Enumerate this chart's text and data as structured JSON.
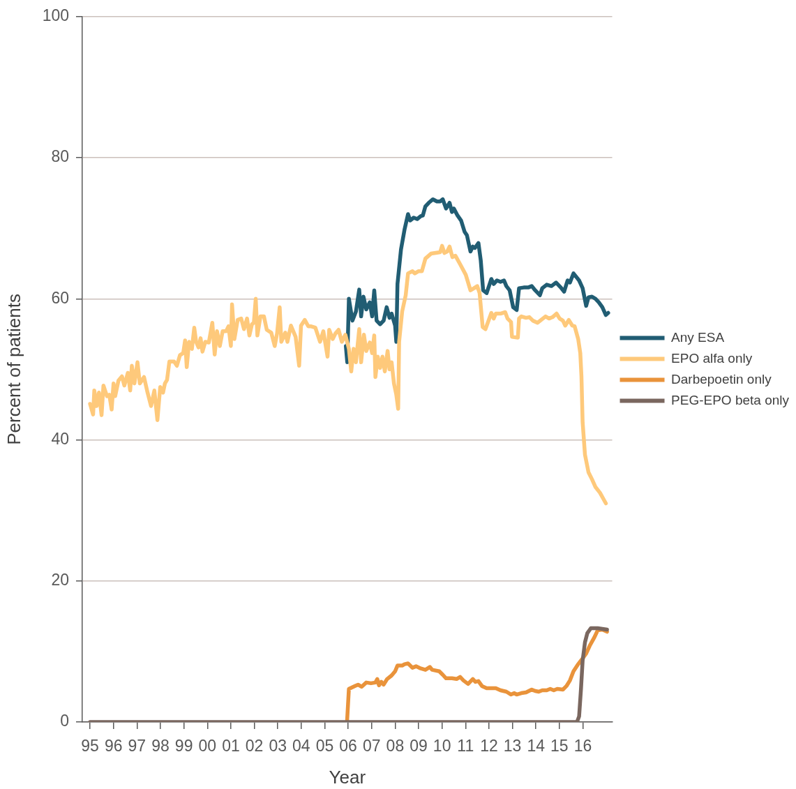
{
  "chart_data": {
    "type": "line",
    "xlabel": "Year",
    "ylabel": "Percent of patients",
    "xlim": [
      1994.67,
      2017.25
    ],
    "xticks": [
      {
        "value": 1995,
        "label": "95"
      },
      {
        "value": 1996,
        "label": "96"
      },
      {
        "value": 1997,
        "label": "97"
      },
      {
        "value": 1998,
        "label": "98"
      },
      {
        "value": 1999,
        "label": "99"
      },
      {
        "value": 2000,
        "label": "00"
      },
      {
        "value": 2001,
        "label": "01"
      },
      {
        "value": 2002,
        "label": "02"
      },
      {
        "value": 2003,
        "label": "03"
      },
      {
        "value": 2004,
        "label": "04"
      },
      {
        "value": 2005,
        "label": "05"
      },
      {
        "value": 2006,
        "label": "06"
      },
      {
        "value": 2007,
        "label": "07"
      },
      {
        "value": 2008,
        "label": "08"
      },
      {
        "value": 2009,
        "label": "09"
      },
      {
        "value": 2010,
        "label": "10"
      },
      {
        "value": 2011,
        "label": "11"
      },
      {
        "value": 2012,
        "label": "12"
      },
      {
        "value": 2013,
        "label": "13"
      },
      {
        "value": 2014,
        "label": "14"
      },
      {
        "value": 2015,
        "label": "15"
      },
      {
        "value": 2016,
        "label": "16"
      }
    ],
    "ylim": [
      0,
      100
    ],
    "yticks": [
      0,
      20,
      40,
      60,
      80,
      100
    ],
    "grid": "y",
    "legend": "right",
    "series": [
      {
        "name": "Any ESA",
        "color": "#215d73",
        "x": [
          2005.9,
          2005.96,
          2006.03,
          2006.18,
          2006.33,
          2006.47,
          2006.55,
          2006.65,
          2006.77,
          2006.92,
          2007.02,
          2007.11,
          2007.21,
          2007.36,
          2007.51,
          2007.64,
          2007.76,
          2007.85,
          2008.0,
          2008.05,
          2008.1,
          2008.25,
          2008.4,
          2008.55,
          2008.64,
          2008.79,
          2008.94,
          2009.09,
          2009.18,
          2009.29,
          2009.43,
          2009.61,
          2009.78,
          2009.92,
          2010.03,
          2010.17,
          2010.32,
          2010.42,
          2010.5,
          2010.66,
          2010.81,
          2010.96,
          2011.06,
          2011.21,
          2011.31,
          2011.4,
          2011.55,
          2011.65,
          2011.75,
          2011.9,
          2012.1,
          2012.2,
          2012.34,
          2012.49,
          2012.64,
          2012.74,
          2012.88,
          2013.03,
          2013.18,
          2013.28,
          2013.48,
          2013.67,
          2013.82,
          2013.97,
          2014.17,
          2014.27,
          2014.46,
          2014.66,
          2014.86,
          2015.06,
          2015.2,
          2015.35,
          2015.45,
          2015.6,
          2015.84,
          2015.99,
          2016.14,
          2016.24,
          2016.39,
          2016.54,
          2016.68,
          2016.83,
          2016.98,
          2017.08
        ],
        "values": [
          53.3,
          51.0,
          60.0,
          56.9,
          58.2,
          61.3,
          57.5,
          60.3,
          58.5,
          59.5,
          57.5,
          61.2,
          56.9,
          56.4,
          56.9,
          58.8,
          57.3,
          57.9,
          56.2,
          53.9,
          62.1,
          67.0,
          69.8,
          72.0,
          71.1,
          71.5,
          71.3,
          71.7,
          71.8,
          73.1,
          73.6,
          74.1,
          73.8,
          73.8,
          74.1,
          72.8,
          73.6,
          72.3,
          72.8,
          71.8,
          71.1,
          69.5,
          69.0,
          66.7,
          67.4,
          67.2,
          67.9,
          65.4,
          61.2,
          60.8,
          62.8,
          62.1,
          62.6,
          62.4,
          62.6,
          61.8,
          61.2,
          58.8,
          58.4,
          61.5,
          61.6,
          61.6,
          61.8,
          61.2,
          60.5,
          61.5,
          62.0,
          61.8,
          62.3,
          61.6,
          61.0,
          62.6,
          62.3,
          63.6,
          62.6,
          61.5,
          59.0,
          60.2,
          60.3,
          60.0,
          59.5,
          58.8,
          57.7,
          58.0
        ]
      },
      {
        "name": "EPO alfa only",
        "color": "#fec97b",
        "x": [
          1995.0,
          1995.13,
          1995.18,
          1995.28,
          1995.38,
          1995.49,
          1995.57,
          1995.72,
          1995.82,
          1995.92,
          1996.0,
          1996.07,
          1996.21,
          1996.36,
          1996.46,
          1996.61,
          1996.71,
          1996.78,
          1996.89,
          1997.02,
          1997.12,
          1997.3,
          1997.45,
          1997.6,
          1997.74,
          1997.87,
          1997.99,
          1998.11,
          1998.19,
          1998.28,
          1998.38,
          1998.58,
          1998.7,
          1998.83,
          1998.97,
          1999.05,
          1999.12,
          1999.22,
          1999.34,
          1999.44,
          1999.52,
          1999.62,
          1999.71,
          1999.79,
          1999.91,
          2000.06,
          2000.21,
          2000.31,
          2000.41,
          2000.53,
          2000.65,
          2000.8,
          2000.9,
          2001.0,
          2001.05,
          2001.15,
          2001.29,
          2001.44,
          2001.56,
          2001.69,
          2001.79,
          2001.9,
          2001.98,
          2002.06,
          2002.13,
          2002.26,
          2002.41,
          2002.53,
          2002.72,
          2002.87,
          2002.97,
          2003.08,
          2003.15,
          2003.32,
          2003.41,
          2003.56,
          2003.76,
          2003.91,
          2003.99,
          2004.15,
          2004.3,
          2004.4,
          2004.6,
          2004.8,
          2004.94,
          2005.12,
          2005.19,
          2005.34,
          2005.46,
          2005.59,
          2005.73,
          2005.88,
          2006.03,
          2006.13,
          2006.23,
          2006.33,
          2006.47,
          2006.55,
          2006.67,
          2006.77,
          2006.92,
          2007.02,
          2007.11,
          2007.16,
          2007.26,
          2007.36,
          2007.46,
          2007.56,
          2007.68,
          2007.76,
          2007.85,
          2007.95,
          2008.05,
          2008.13,
          2008.17,
          2008.3,
          2008.45,
          2008.55,
          2008.74,
          2008.84,
          2008.99,
          2009.14,
          2009.29,
          2009.53,
          2009.73,
          2009.92,
          2010.0,
          2010.1,
          2010.22,
          2010.32,
          2010.44,
          2010.57,
          2010.77,
          2011.01,
          2011.21,
          2011.36,
          2011.5,
          2011.6,
          2011.73,
          2011.85,
          2012.1,
          2012.2,
          2012.29,
          2012.49,
          2012.69,
          2012.79,
          2012.94,
          2012.98,
          2013.23,
          2013.28,
          2013.38,
          2013.58,
          2013.72,
          2013.87,
          2014.07,
          2014.22,
          2014.41,
          2014.56,
          2014.71,
          2014.88,
          2015.01,
          2015.15,
          2015.25,
          2015.4,
          2015.55,
          2015.65,
          2015.8,
          2015.89,
          2015.94,
          2015.99,
          2016.09,
          2016.24,
          2016.39,
          2016.54,
          2016.73,
          2016.88,
          2016.98
        ],
        "values": [
          45.1,
          43.6,
          47.0,
          44.8,
          46.7,
          43.5,
          47.7,
          46.2,
          46.4,
          44.3,
          48.0,
          46.2,
          48.4,
          49.0,
          47.7,
          49.5,
          47.0,
          50.5,
          48.0,
          51.0,
          48.0,
          48.9,
          46.7,
          44.8,
          47.0,
          42.8,
          47.5,
          46.7,
          48.0,
          48.5,
          51.1,
          51.1,
          50.5,
          52.0,
          52.3,
          54.1,
          50.3,
          53.9,
          52.9,
          55.9,
          53.9,
          53.1,
          54.4,
          52.5,
          53.9,
          53.8,
          56.6,
          52.1,
          55.4,
          53.3,
          55.4,
          55.4,
          56.1,
          53.3,
          59.2,
          54.3,
          57.0,
          57.2,
          55.7,
          57.2,
          54.8,
          56.4,
          56.6,
          60.0,
          54.8,
          57.5,
          57.5,
          55.6,
          55.2,
          53.3,
          55.1,
          58.8,
          53.9,
          55.2,
          53.9,
          56.2,
          54.6,
          50.5,
          56.2,
          57.0,
          56.1,
          56.1,
          55.9,
          53.9,
          55.4,
          51.8,
          55.6,
          54.3,
          55.1,
          55.6,
          53.9,
          54.9,
          52.9,
          49.7,
          52.9,
          51.0,
          55.7,
          51.0,
          54.9,
          52.6,
          53.8,
          52.3,
          54.8,
          48.9,
          51.8,
          50.2,
          51.8,
          49.7,
          52.6,
          50.0,
          51.0,
          48.0,
          46.4,
          44.4,
          53.9,
          58.2,
          60.5,
          63.6,
          63.9,
          63.6,
          63.9,
          63.9,
          65.7,
          66.4,
          66.5,
          66.6,
          67.5,
          66.5,
          66.7,
          67.4,
          65.9,
          66.1,
          64.9,
          63.4,
          61.2,
          61.5,
          61.8,
          60.8,
          56.0,
          55.7,
          58.0,
          57.2,
          57.9,
          57.9,
          58.1,
          57.2,
          56.7,
          54.6,
          54.5,
          57.2,
          57.5,
          57.3,
          57.4,
          56.9,
          56.6,
          57.0,
          57.5,
          57.2,
          57.4,
          57.9,
          57.2,
          56.9,
          56.2,
          57.0,
          56.2,
          56.1,
          54.3,
          52.3,
          49.0,
          42.5,
          37.9,
          35.4,
          34.4,
          33.3,
          32.5,
          31.6,
          31.0
        ]
      },
      {
        "name": "Darbepoetin only",
        "color": "#e9933b",
        "x": [
          2005.95,
          2006.03,
          2006.28,
          2006.42,
          2006.57,
          2006.77,
          2006.97,
          2007.16,
          2007.24,
          2007.31,
          2007.41,
          2007.51,
          2007.66,
          2007.85,
          2008.0,
          2008.1,
          2008.3,
          2008.4,
          2008.55,
          2008.74,
          2008.89,
          2009.09,
          2009.29,
          2009.48,
          2009.58,
          2009.88,
          2010.03,
          2010.17,
          2010.42,
          2010.62,
          2010.77,
          2010.91,
          2011.11,
          2011.31,
          2011.42,
          2011.55,
          2011.7,
          2011.9,
          2012.1,
          2012.29,
          2012.49,
          2012.74,
          2012.94,
          2013.08,
          2013.18,
          2013.38,
          2013.58,
          2013.82,
          2013.97,
          2014.12,
          2014.27,
          2014.46,
          2014.61,
          2014.76,
          2014.91,
          2015.15,
          2015.3,
          2015.45,
          2015.6,
          2015.8,
          2015.94,
          2016.14,
          2016.29,
          2016.49,
          2016.63,
          2016.83,
          2017.03
        ],
        "values": [
          0,
          4.7,
          5.1,
          5.3,
          5.0,
          5.6,
          5.5,
          5.6,
          6.1,
          5.2,
          5.7,
          5.3,
          6.1,
          6.6,
          7.2,
          8.0,
          8.0,
          8.2,
          8.3,
          7.7,
          7.9,
          7.6,
          7.4,
          7.8,
          7.4,
          7.2,
          6.7,
          6.2,
          6.2,
          6.1,
          6.4,
          5.9,
          5.4,
          6.1,
          5.7,
          5.8,
          5.1,
          4.8,
          4.8,
          4.8,
          4.5,
          4.3,
          3.9,
          4.1,
          3.9,
          4.1,
          4.2,
          4.6,
          4.4,
          4.3,
          4.5,
          4.5,
          4.7,
          4.5,
          4.7,
          4.6,
          5.1,
          5.9,
          7.2,
          8.2,
          8.8,
          9.7,
          10.8,
          12.0,
          13.0,
          13.1,
          12.8
        ]
      },
      {
        "name": "PEG-EPO beta only",
        "color": "#7a675f",
        "x": [
          1995.0,
          2015.75,
          2015.84,
          2015.92,
          2015.99,
          2016.09,
          2016.19,
          2016.34,
          2016.63,
          2016.83,
          2017.03
        ],
        "values": [
          0,
          0,
          0.8,
          4.7,
          8.7,
          11.3,
          12.6,
          13.3,
          13.3,
          13.2,
          13.1
        ]
      }
    ]
  }
}
